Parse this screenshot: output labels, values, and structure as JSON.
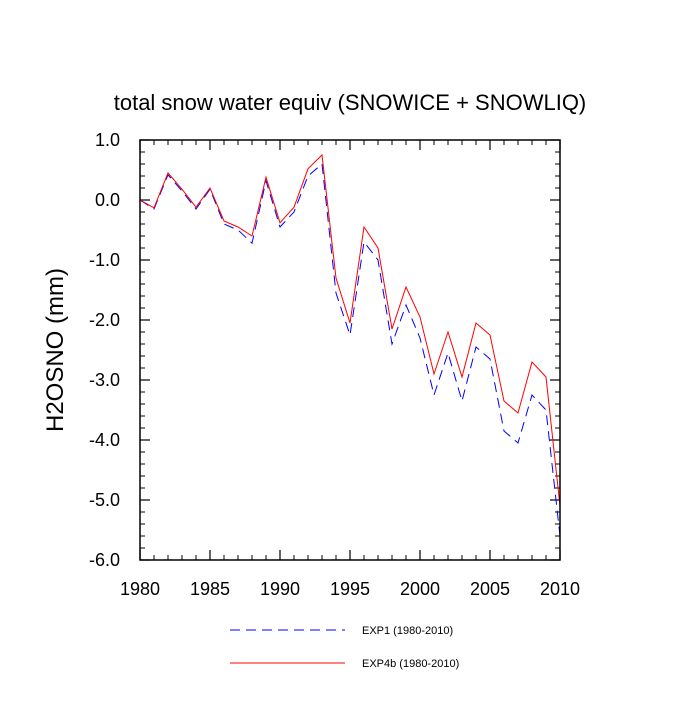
{
  "chart_data": {
    "type": "line",
    "title": "total snow water equiv (SNOWICE + SNOWLIQ)",
    "xlabel": "",
    "ylabel": "H2OSNO  (mm)",
    "xlim": [
      1980,
      2010
    ],
    "ylim": [
      -6.0,
      1.0
    ],
    "x_ticks": [
      1980,
      1985,
      1990,
      1995,
      2000,
      2005,
      2010
    ],
    "x_tick_labels": [
      "1980",
      "1985",
      "1990",
      "1995",
      "2000",
      "2005",
      "2010"
    ],
    "y_ticks": [
      1.0,
      0.0,
      -1.0,
      -2.0,
      -3.0,
      -4.0,
      -5.0,
      -6.0
    ],
    "y_tick_labels": [
      "1.0",
      "0.0",
      "-1.0",
      "-2.0",
      "-3.0",
      "-4.0",
      "-5.0",
      "-6.0"
    ],
    "grid": false,
    "legend_position": "bottom",
    "x": [
      1980,
      1981,
      1982,
      1983,
      1984,
      1985,
      1986,
      1987,
      1988,
      1989,
      1990,
      1991,
      1992,
      1993,
      1994,
      1995,
      1996,
      1997,
      1998,
      1999,
      2000,
      2001,
      2002,
      2003,
      2004,
      2005,
      2006,
      2007,
      2008,
      2009,
      2010
    ],
    "series": [
      {
        "name": "EXP1 (1980-2010)",
        "color": "#0000ff",
        "style": "dashed",
        "values": [
          0.0,
          -0.15,
          0.42,
          0.15,
          -0.15,
          0.18,
          -0.4,
          -0.5,
          -0.72,
          0.32,
          -0.45,
          -0.2,
          0.4,
          0.6,
          -1.55,
          -2.25,
          -0.7,
          -1.0,
          -2.4,
          -1.75,
          -2.3,
          -3.25,
          -2.55,
          -3.35,
          -2.45,
          -2.65,
          -3.85,
          -4.05,
          -3.25,
          -3.5,
          -5.6
        ]
      },
      {
        "name": "EXP4b (1980-2010)",
        "color": "#ff0000",
        "style": "solid",
        "values": [
          0.0,
          -0.13,
          0.45,
          0.18,
          -0.12,
          0.2,
          -0.35,
          -0.45,
          -0.6,
          0.38,
          -0.38,
          -0.12,
          0.52,
          0.75,
          -1.3,
          -2.05,
          -0.45,
          -0.8,
          -2.15,
          -1.45,
          -1.95,
          -2.9,
          -2.2,
          -2.95,
          -2.05,
          -2.25,
          -3.35,
          -3.55,
          -2.7,
          -2.95,
          -5.1
        ]
      }
    ]
  }
}
